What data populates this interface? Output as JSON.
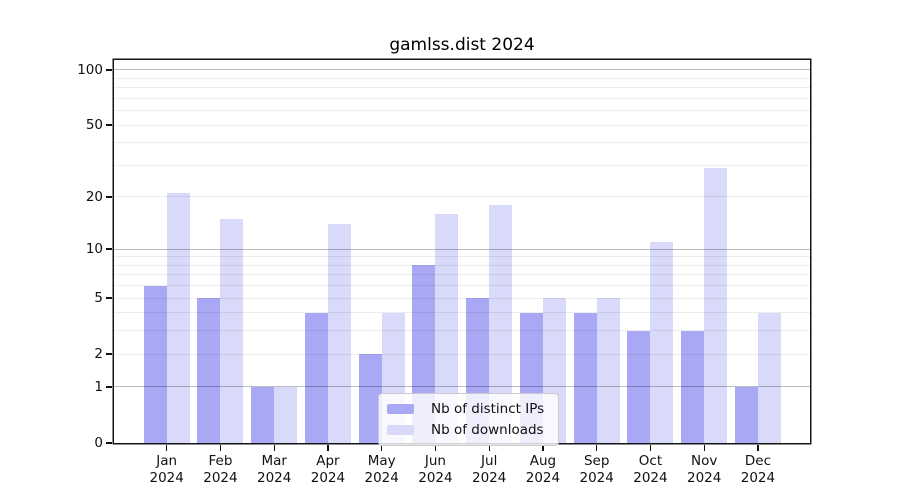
{
  "title": "gamlss.dist 2024",
  "chart_data": {
    "type": "bar",
    "title": "gamlss.dist 2024",
    "xlabel": "",
    "ylabel": "",
    "yscale": "log1p",
    "ylim": [
      0,
      113
    ],
    "grid": "on",
    "legend_position": "bottom-center-inside",
    "categories": [
      "Jan",
      "Feb",
      "Mar",
      "Apr",
      "May",
      "Jun",
      "Jul",
      "Aug",
      "Sep",
      "Oct",
      "Nov",
      "Dec"
    ],
    "year_label": "2024",
    "series": [
      {
        "name": "Nb of distinct IPs",
        "color": "#a8a8f5",
        "values": [
          6,
          5,
          1,
          4,
          2,
          8,
          5,
          4,
          4,
          3,
          3,
          1
        ]
      },
      {
        "name": "Nb of downloads",
        "color": "#d9d9f9",
        "values": [
          21,
          15,
          1,
          14,
          4,
          16,
          18,
          5,
          5,
          11,
          29,
          4
        ]
      }
    ],
    "yticks": [
      {
        "value": 0,
        "label": "0"
      },
      {
        "value": 1,
        "label": "1"
      },
      {
        "value": 2,
        "label": "2"
      },
      {
        "value": 5,
        "label": "5"
      },
      {
        "value": 10,
        "label": "10"
      },
      {
        "value": 20,
        "label": "20"
      },
      {
        "value": 50,
        "label": "50"
      },
      {
        "value": 100,
        "label": "100"
      }
    ],
    "gridlines": {
      "major": [
        1,
        10,
        100
      ],
      "minor": [
        2,
        3,
        4,
        5,
        6,
        7,
        8,
        9,
        20,
        30,
        40,
        50,
        60,
        70,
        80,
        90
      ]
    }
  }
}
